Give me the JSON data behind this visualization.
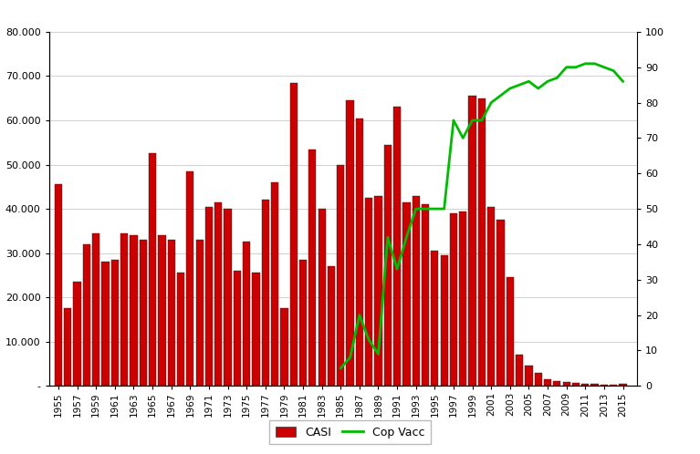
{
  "years": [
    1955,
    1956,
    1957,
    1958,
    1959,
    1960,
    1961,
    1962,
    1963,
    1964,
    1965,
    1966,
    1967,
    1968,
    1969,
    1970,
    1971,
    1972,
    1973,
    1974,
    1975,
    1976,
    1977,
    1978,
    1979,
    1980,
    1981,
    1982,
    1983,
    1984,
    1985,
    1986,
    1987,
    1988,
    1989,
    1990,
    1991,
    1992,
    1993,
    1994,
    1995,
    1996,
    1997,
    1998,
    1999,
    2000,
    2001,
    2002,
    2003,
    2004,
    2005,
    2006,
    2007,
    2008,
    2009,
    2010,
    2011,
    2012,
    2013,
    2014,
    2015
  ],
  "cases": [
    45500,
    17500,
    23500,
    32000,
    34500,
    28000,
    28500,
    34500,
    34000,
    33000,
    52500,
    34000,
    33000,
    25500,
    48500,
    33000,
    40500,
    41500,
    40000,
    26000,
    32500,
    25500,
    42000,
    46000,
    17500,
    68500,
    28500,
    53500,
    40000,
    27000,
    50000,
    64500,
    60500,
    42500,
    43000,
    54500,
    63000,
    41500,
    43000,
    41000,
    30500,
    29500,
    39000,
    39500,
    65500,
    65000,
    40500,
    37500,
    24500,
    7000,
    4500,
    3000,
    1500,
    1000,
    800,
    600,
    500,
    400,
    200,
    200,
    500
  ],
  "vacc_years": [
    1985,
    1986,
    1987,
    1988,
    1989,
    1990,
    1991,
    1992,
    1993,
    1994,
    1995,
    1996,
    1997,
    1998,
    1999,
    2000,
    2001,
    2002,
    2003,
    2004,
    2005,
    2006,
    2007,
    2008,
    2009,
    2010,
    2011,
    2012,
    2013,
    2014,
    2015
  ],
  "vacc_coverage": [
    5,
    8,
    20,
    13,
    9,
    42,
    33,
    42,
    50,
    50,
    50,
    50,
    75,
    70,
    75,
    75,
    80,
    82,
    84,
    85,
    86,
    84,
    86,
    87,
    90,
    90,
    91,
    91,
    90,
    89,
    86
  ],
  "bar_color": "#cc0000",
  "line_color": "#00bb00",
  "ylim_left": [
    0,
    80000
  ],
  "ylim_right": [
    0,
    100
  ],
  "ytick_labels_left": [
    "-",
    "10.000",
    "20.000",
    "30.000",
    "40.000",
    "50.000",
    "60.000",
    "70.000",
    "80.000"
  ],
  "ytick_labels_right": [
    "0",
    "10",
    "20",
    "30",
    "40",
    "50",
    "60",
    "70",
    "80",
    "90",
    "100"
  ],
  "legend_casi": "CASI",
  "legend_vacc": "Cop Vacc",
  "background_color": "#ffffff",
  "grid_color": "#d0d0d0"
}
